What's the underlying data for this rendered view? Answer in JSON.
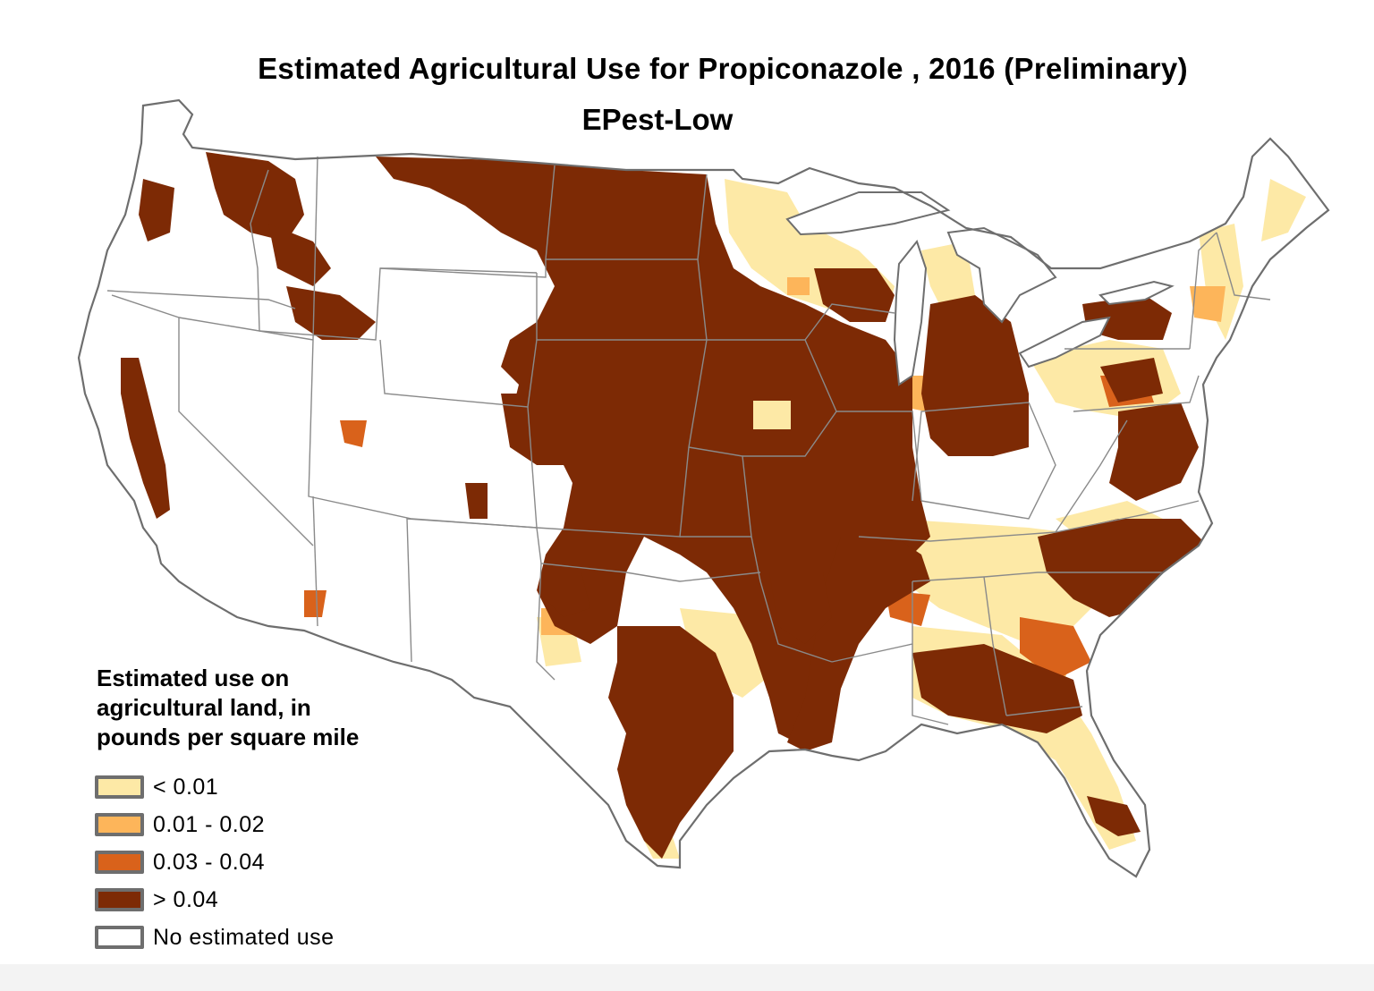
{
  "header": {
    "title": "Estimated Agricultural Use for Propiconazole , 2016 (Preliminary)",
    "subtitle": "EPest-Low"
  },
  "legend": {
    "title": "Estimated use on\nagricultural land, in\npounds per square mile",
    "items": [
      {
        "label": "< 0.01",
        "color": "#fde9a6"
      },
      {
        "label": "0.01 - 0.02",
        "color": "#fdb55a"
      },
      {
        "label": "0.03 - 0.04",
        "color": "#d9621b"
      },
      {
        "label": "> 0.04",
        "color": "#7d2a05"
      },
      {
        "label": "No estimated use",
        "color": "#ffffff"
      }
    ]
  },
  "colors": {
    "state_border": "#8a8a8a",
    "coast": "#6e6e6e",
    "lakes": "#ffffff"
  }
}
